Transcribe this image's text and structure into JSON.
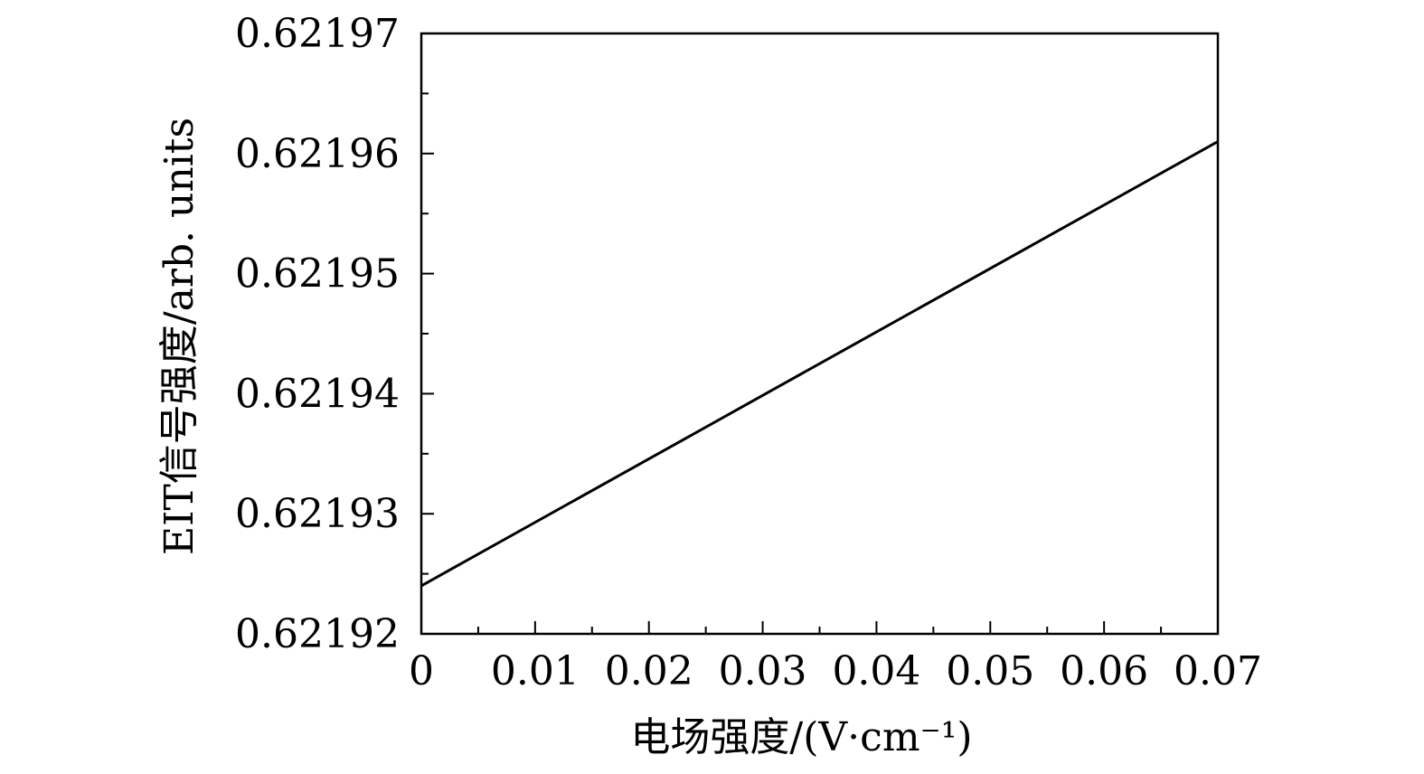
{
  "chart_data": {
    "type": "line",
    "title": "",
    "xlabel": "电场强度/(V·cm⁻¹)",
    "ylabel": "EIT信号强度/arb. units",
    "xlim": [
      0,
      0.07
    ],
    "ylim": [
      0.62192,
      0.62197
    ],
    "x_ticks": [
      0,
      0.01,
      0.02,
      0.03,
      0.04,
      0.05,
      0.06,
      0.07
    ],
    "x_tick_labels": [
      "0",
      "0.01",
      "0.02",
      "0.03",
      "0.04",
      "0.05",
      "0.06",
      "0.07"
    ],
    "y_ticks": [
      0.62192,
      0.62193,
      0.62194,
      0.62195,
      0.62196,
      0.62197
    ],
    "y_tick_labels": [
      "0.62192",
      "0.62193",
      "0.62194",
      "0.62195",
      "0.62196",
      "0.62197"
    ],
    "grid": false,
    "series": [
      {
        "x": [
          0,
          0.07
        ],
        "y": [
          0.621924,
          0.621961
        ],
        "color": "#000000"
      }
    ]
  }
}
